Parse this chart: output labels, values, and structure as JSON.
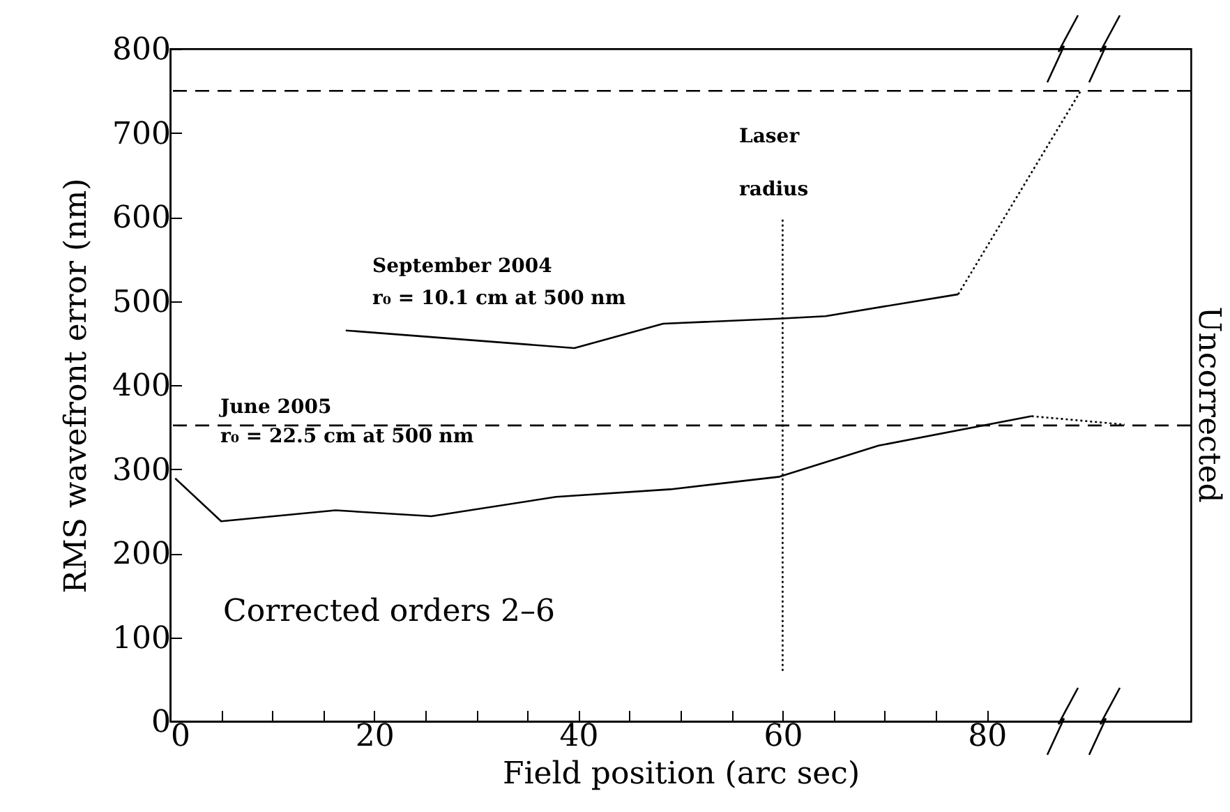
{
  "chart_data": {
    "type": "line",
    "xlabel": "Field position (arc sec)",
    "ylabel": "RMS wavefront error (nm)",
    "xlim": [
      0,
      100
    ],
    "ylim": [
      0,
      800
    ],
    "xticks": [
      0,
      {
        "value": 5,
        "label": null
      },
      {
        "value": 10,
        "label": null
      },
      {
        "value": 15,
        "label": null
      },
      20,
      {
        "value": 25,
        "label": null
      },
      {
        "value": 30,
        "label": null
      },
      {
        "value": 35,
        "label": null
      },
      40,
      {
        "value": 45,
        "label": null
      },
      {
        "value": 50,
        "label": null
      },
      {
        "value": 55,
        "label": null
      },
      60,
      {
        "value": 65,
        "label": null
      },
      {
        "value": 70,
        "label": null
      },
      {
        "value": 75,
        "label": null
      },
      80
    ],
    "yticks": [
      0,
      100,
      200,
      300,
      400,
      500,
      600,
      700,
      800
    ],
    "grid": false,
    "series": [
      {
        "color": "#000000",
        "line_style": "solid",
        "x": [
          17.2,
          39.6,
          48.3,
          59.7,
          64.2,
          77.2
        ],
        "values": [
          465,
          444,
          473,
          479,
          482,
          508
        ]
      },
      {
        "color": "#000000",
        "line_style": "dotted",
        "x": [
          77.2,
          89.2
        ],
        "values": [
          508,
          750
        ]
      },
      {
        "color": "#000000",
        "line_style": "solid",
        "x": [
          0.5,
          5.0,
          16.2,
          25.6,
          37.8,
          49,
          59.7,
          69.4,
          84.4
        ],
        "values": [
          289,
          238,
          251,
          244,
          267,
          276,
          291,
          328,
          363
        ]
      },
      {
        "color": "#000000",
        "line_style": "dotted",
        "x": [
          84.4,
          93.5
        ],
        "values": [
          363,
          353
        ]
      },
      {
        "color": "#000000",
        "line_style": "dotted",
        "x": [
          60,
          60
        ],
        "values": [
          60,
          600
        ]
      }
    ],
    "ref_lines": [
      {
        "axis": "y",
        "value": 750,
        "line_style": "dashed"
      },
      {
        "axis": "y",
        "value": 352,
        "line_style": "dashed"
      }
    ],
    "annotations": [
      "Laser",
      "radius",
      "September 2004",
      "r₀ = 10.1 cm at 500 nm",
      "June 2005",
      "r₀ = 22.5 cm at 500 nm",
      "Corrected orders 2–6",
      "Uncorrected"
    ]
  }
}
